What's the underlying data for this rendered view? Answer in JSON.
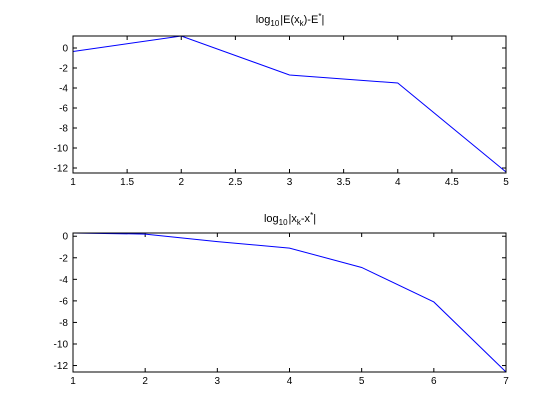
{
  "chart_data": [
    {
      "type": "line",
      "title": {
        "prefix": "log",
        "base": "10",
        "body_start": "|E(x",
        "body_sub": "k",
        "body_mid": ")-E",
        "body_sup": "*",
        "body_end": "|"
      },
      "xlabel": "",
      "ylabel": "",
      "xlim": [
        1,
        5
      ],
      "ylim": [
        -12.5,
        1.2
      ],
      "x_ticks": [
        1,
        1.5,
        2,
        2.5,
        3,
        3.5,
        4,
        4.5,
        5
      ],
      "x_tick_labels": [
        "1",
        "1.5",
        "2",
        "2.5",
        "3",
        "3.5",
        "4",
        "4.5",
        "5"
      ],
      "y_ticks": [
        0,
        -2,
        -4,
        -6,
        -8,
        -10,
        -12
      ],
      "y_tick_labels": [
        "0",
        "-2",
        "-4",
        "-6",
        "-8",
        "-10",
        "-12"
      ],
      "grid": false,
      "line_color": "#0000ff",
      "series": [
        {
          "x": [
            1,
            2,
            3,
            4,
            5
          ],
          "y": [
            -0.35,
            1.2,
            -2.7,
            -3.5,
            -12.4
          ]
        }
      ]
    },
    {
      "type": "line",
      "title": {
        "prefix": "log",
        "base": "10",
        "body_start": "|x",
        "body_sub": "k",
        "body_mid": "-x",
        "body_sup": "*",
        "body_end": "|"
      },
      "xlabel": "",
      "ylabel": "",
      "xlim": [
        1,
        7
      ],
      "ylim": [
        -12.6,
        0.3
      ],
      "x_ticks": [
        1,
        2,
        3,
        4,
        5,
        6,
        7
      ],
      "x_tick_labels": [
        "1",
        "2",
        "3",
        "4",
        "5",
        "6",
        "7"
      ],
      "y_ticks": [
        0,
        -2,
        -4,
        -6,
        -8,
        -10,
        -12
      ],
      "y_tick_labels": [
        "0",
        "-2",
        "-4",
        "-6",
        "-8",
        "-10",
        "-12"
      ],
      "grid": false,
      "line_color": "#0000ff",
      "series": [
        {
          "x": [
            1,
            2,
            3,
            4,
            5,
            6,
            7
          ],
          "y": [
            0.3,
            0.2,
            -0.5,
            -1.1,
            -2.9,
            -6.1,
            -12.6
          ]
        }
      ]
    }
  ]
}
